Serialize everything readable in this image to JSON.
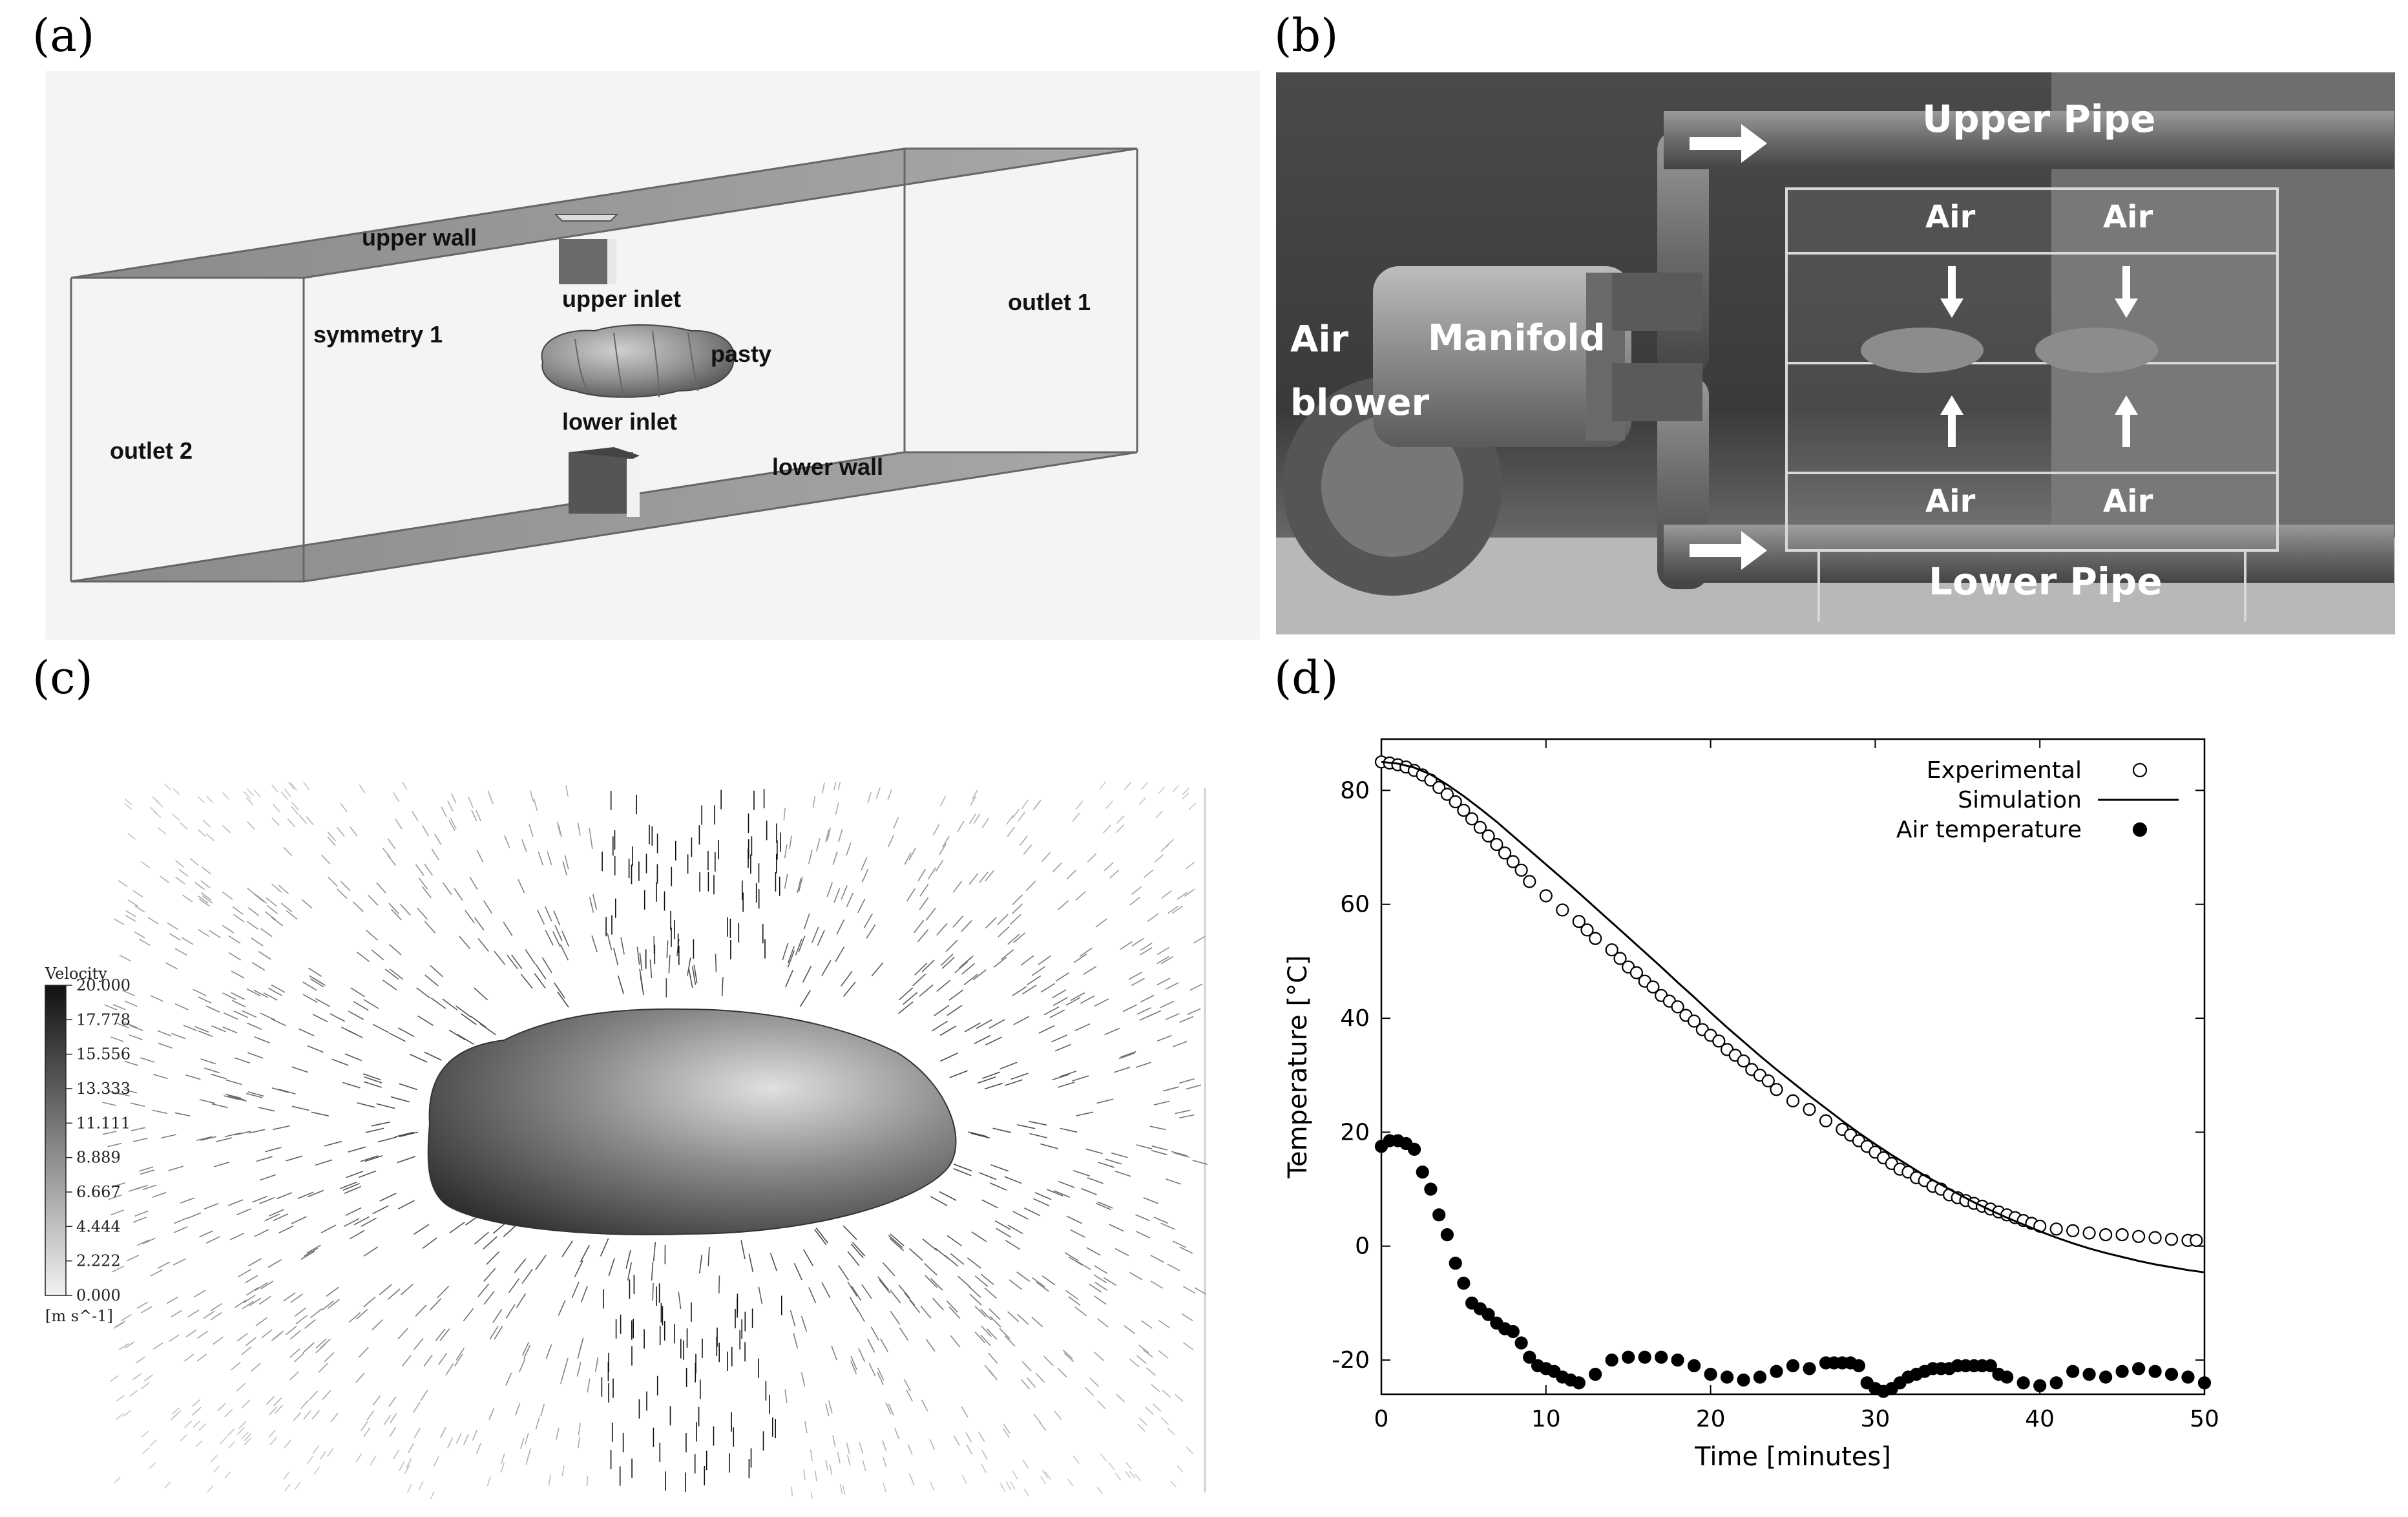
{
  "panels": {
    "a": {
      "letter": "(a)",
      "labels": {
        "upper_wall": "upper wall",
        "upper_inlet": "upper inlet",
        "symmetry": "symmetry 1",
        "pasty": "pasty",
        "outlet1": "outlet 1",
        "outlet2": "outlet 2",
        "lower_inlet": "lower inlet",
        "lower_wall": "lower wall"
      }
    },
    "b": {
      "letter": "(b)",
      "labels": {
        "upper_pipe": "Upper Pipe",
        "lower_pipe": "Lower Pipe",
        "manifold": "Manifold",
        "air_blower_1": "Air",
        "air_blower_2": "blower",
        "air": "Air"
      }
    },
    "c": {
      "letter": "(c)",
      "colorbar": {
        "title": "Velocity",
        "unit": "[m s^-1]",
        "ticks": [
          "20.000",
          "17.778",
          "15.556",
          "13.333",
          "11.111",
          "8.889",
          "6.667",
          "4.444",
          "2.222",
          "0.000"
        ],
        "range": [
          0,
          20
        ]
      }
    },
    "d": {
      "letter": "(d)"
    }
  },
  "chart_data": {
    "type": "line",
    "title": "",
    "xlabel": "Time [minutes]",
    "ylabel": "Temperature [°C]",
    "xlim": [
      0,
      50
    ],
    "ylim": [
      -26,
      89
    ],
    "xticks": [
      0,
      10,
      20,
      30,
      40,
      50
    ],
    "yticks": [
      -20,
      0,
      20,
      40,
      60,
      80
    ],
    "grid": false,
    "legend_position": "top-right",
    "series": [
      {
        "name": "Experimental",
        "style": "open-circle",
        "x": [
          0,
          0.5,
          1,
          1.5,
          2,
          2.5,
          3,
          3.5,
          4,
          4.5,
          5,
          5.5,
          6,
          6.5,
          7,
          7.5,
          8,
          8.5,
          9,
          10,
          11,
          12,
          12.5,
          13,
          14,
          14.5,
          15,
          15.5,
          16,
          16.5,
          17,
          17.5,
          18,
          18.5,
          19,
          19.5,
          20,
          20.5,
          21,
          21.5,
          22,
          22.5,
          23,
          23.5,
          24,
          25,
          26,
          27,
          28,
          28.5,
          29,
          29.5,
          30,
          30.5,
          31,
          31.5,
          32,
          32.5,
          33,
          33.5,
          34,
          34.5,
          35,
          35.5,
          36,
          36.5,
          37,
          37.5,
          38,
          38.5,
          39,
          39.5,
          40,
          41,
          42,
          43,
          44,
          45,
          46,
          47,
          48,
          49,
          49.5
        ],
        "y": [
          85,
          84.8,
          84.5,
          84.1,
          83.5,
          82.7,
          81.8,
          80.5,
          79.3,
          78,
          76.5,
          75,
          73.5,
          72,
          70.5,
          69,
          67.5,
          66,
          64,
          61.5,
          59,
          57,
          55.5,
          54,
          52,
          50.5,
          49,
          48,
          46.5,
          45.5,
          44,
          43,
          42,
          40.5,
          39.5,
          38,
          37,
          36,
          34.5,
          33.5,
          32.5,
          31,
          30,
          29,
          27.5,
          25.5,
          24,
          22,
          20.5,
          19.5,
          18.5,
          17.5,
          16.5,
          15.5,
          14.5,
          13.5,
          13,
          12,
          11.5,
          10.5,
          10,
          9,
          8.5,
          8,
          7.5,
          7,
          6.5,
          6,
          5.5,
          5,
          4.5,
          4,
          3.5,
          3,
          2.7,
          2.3,
          2,
          2,
          1.7,
          1.5,
          1.2,
          1,
          1
        ]
      },
      {
        "name": "Simulation",
        "style": "line",
        "x": [
          0,
          1,
          2,
          3,
          4,
          5,
          6,
          7,
          8,
          9,
          10,
          11,
          12,
          13,
          14,
          15,
          16,
          17,
          18,
          19,
          20,
          21,
          22,
          23,
          24,
          25,
          26,
          27,
          28,
          29,
          30,
          31,
          32,
          33,
          34,
          35,
          36,
          37,
          38,
          39,
          40,
          41,
          42,
          43,
          44,
          45,
          46,
          47,
          48,
          49,
          50
        ],
        "y": [
          85,
          84.7,
          84,
          82.8,
          81,
          79,
          76.8,
          74.5,
          72,
          69.5,
          67,
          64.5,
          62,
          59.4,
          56.8,
          54.2,
          51.6,
          49,
          46.3,
          43.7,
          41,
          38.4,
          35.9,
          33.4,
          31,
          28.7,
          26.4,
          24.2,
          22,
          19.9,
          17.9,
          16,
          14.2,
          12.4,
          10.8,
          9.2,
          7.7,
          6.3,
          5,
          3.8,
          2.6,
          1.5,
          0.5,
          -0.4,
          -1.2,
          -1.9,
          -2.6,
          -3.2,
          -3.7,
          -4.2,
          -4.6
        ]
      },
      {
        "name": "Air temperature",
        "style": "filled-circle",
        "x": [
          0,
          0.5,
          1,
          1.5,
          2,
          2.5,
          3,
          3.5,
          4,
          4.5,
          5,
          5.5,
          6,
          6.5,
          7,
          7.5,
          8,
          8.5,
          9,
          9.5,
          10,
          10.5,
          11,
          11.5,
          12,
          13,
          14,
          15,
          16,
          17,
          18,
          19,
          20,
          21,
          22,
          23,
          24,
          25,
          26,
          27,
          27.5,
          28,
          28.5,
          29,
          29.5,
          30,
          30.5,
          31,
          31.5,
          32,
          32.5,
          33,
          33.5,
          34,
          34.5,
          35,
          35.5,
          36,
          36.5,
          37,
          37.5,
          38,
          39,
          40,
          41,
          42,
          43,
          44,
          45,
          46,
          47,
          48,
          49,
          50
        ],
        "y": [
          17.5,
          18.5,
          18.5,
          18,
          17,
          13,
          10,
          5.5,
          2,
          -3,
          -6.5,
          -10,
          -11,
          -12,
          -13.5,
          -14.5,
          -15,
          -17,
          -19.5,
          -21,
          -21.5,
          -22,
          -23,
          -23.5,
          -24,
          -22.5,
          -20,
          -19.5,
          -19.5,
          -19.5,
          -20,
          -21,
          -22.5,
          -23,
          -23.5,
          -23,
          -22,
          -21,
          -21.5,
          -20.5,
          -20.5,
          -20.5,
          -20.5,
          -21,
          -24,
          -25,
          -25.5,
          -25,
          -24,
          -23,
          -22.5,
          -22,
          -21.5,
          -21.5,
          -21.5,
          -21,
          -21,
          -21,
          -21,
          -21,
          -22.5,
          -23,
          -24,
          -24.5,
          -24,
          -22,
          -22.5,
          -23,
          -22,
          -21.5,
          -22,
          -22.5,
          -23,
          -24
        ]
      }
    ]
  }
}
